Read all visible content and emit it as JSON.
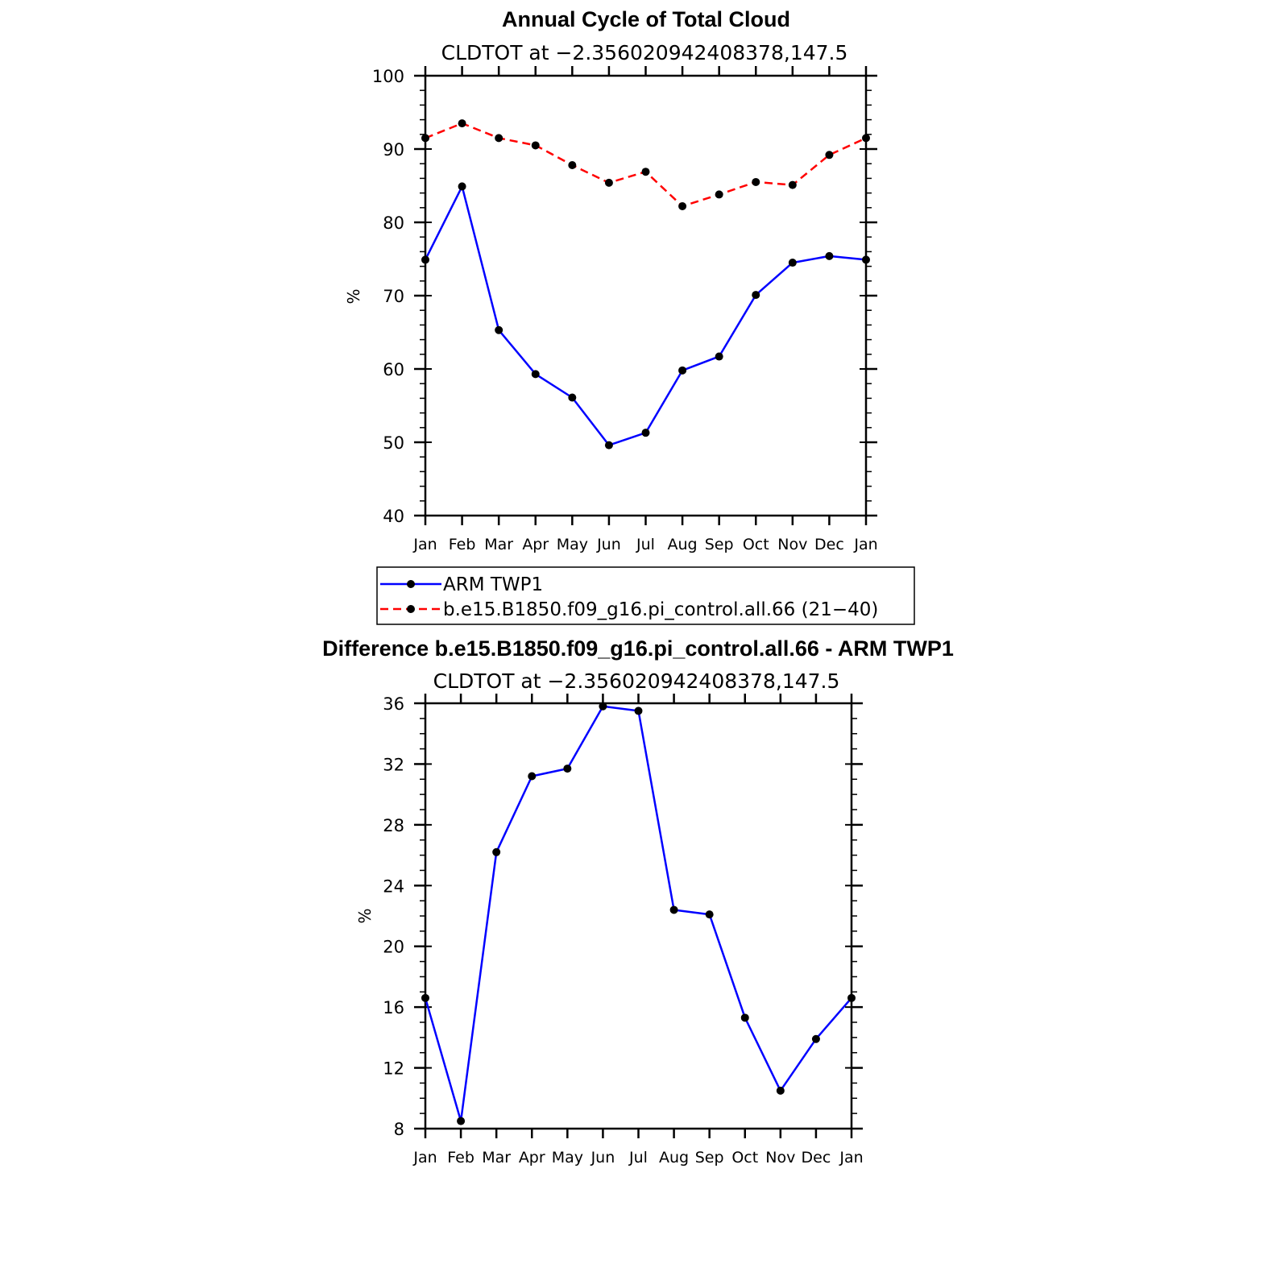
{
  "chart_data": [
    {
      "type": "line",
      "title": "Annual Cycle of Total Cloud",
      "subtitle": "CLDTOT at −2.356020942408378,147.5",
      "xlabel": "",
      "ylabel": "%",
      "categories": [
        "Jan",
        "Feb",
        "Mar",
        "Apr",
        "May",
        "Jun",
        "Jul",
        "Aug",
        "Sep",
        "Oct",
        "Nov",
        "Dec",
        "Jan"
      ],
      "ylim": [
        40,
        100
      ],
      "yticks": [
        40,
        50,
        60,
        70,
        80,
        90,
        100
      ],
      "y_minor_step": 2,
      "series": [
        {
          "name": "ARM TWP1",
          "color": "#0000ff",
          "dash": "solid",
          "values": [
            74.9,
            84.9,
            65.3,
            59.3,
            56.1,
            49.6,
            51.3,
            59.8,
            61.7,
            70.1,
            74.5,
            75.4,
            74.9
          ]
        },
        {
          "name": "b.e15.B1850.f09_g16.pi_control.all.66 (21−40)",
          "color": "#ff0000",
          "dash": "dashed",
          "values": [
            91.5,
            93.5,
            91.5,
            90.5,
            87.8,
            85.4,
            86.9,
            82.2,
            83.8,
            85.5,
            85.1,
            89.2,
            91.5
          ]
        }
      ],
      "legend": "below",
      "marker_color": "#000000",
      "grid": false
    },
    {
      "type": "line",
      "title": "Difference b.e15.B1850.f09_g16.pi_control.all.66 - ARM TWP1",
      "subtitle": "CLDTOT at −2.356020942408378,147.5",
      "xlabel": "",
      "ylabel": "%",
      "categories": [
        "Jan",
        "Feb",
        "Mar",
        "Apr",
        "May",
        "Jun",
        "Jul",
        "Aug",
        "Sep",
        "Oct",
        "Nov",
        "Dec",
        "Jan"
      ],
      "ylim": [
        8,
        36
      ],
      "yticks": [
        8,
        12,
        16,
        20,
        24,
        28,
        32,
        36
      ],
      "y_minor_step": 1,
      "series": [
        {
          "name": "",
          "color": "#0000ff",
          "dash": "solid",
          "values": [
            16.6,
            8.5,
            26.2,
            31.2,
            31.7,
            35.8,
            35.5,
            22.4,
            22.1,
            15.3,
            10.5,
            13.9,
            16.6
          ]
        }
      ],
      "marker_color": "#000000",
      "grid": false
    }
  ]
}
